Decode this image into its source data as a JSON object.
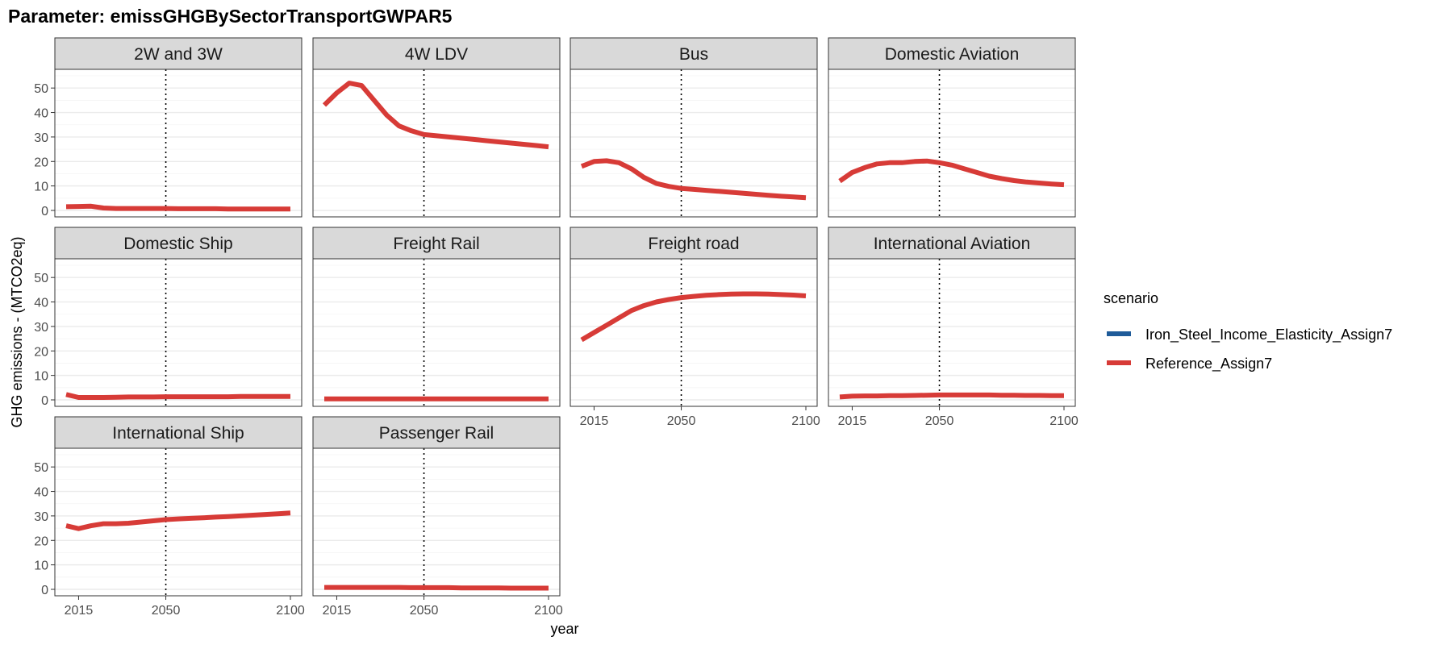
{
  "page_title": "Parameter: emissGHGBySectorTransportGWPAR5",
  "chart_data": {
    "type": "line",
    "title": "Parameter: emissGHGBySectorTransportGWPAR5",
    "xlabel": "year",
    "ylabel": "GHG emissions - (MTCO2eq)",
    "xlim": [
      2010,
      2100
    ],
    "ylim": [
      0,
      55
    ],
    "x_ticks": [
      2015,
      2050,
      2100
    ],
    "y_ticks": [
      0,
      10,
      20,
      30,
      40,
      50
    ],
    "reference_line_x": 2050,
    "grid": true,
    "legend_title": "scenario",
    "legend_position": "right",
    "legend": [
      {
        "name": "Iron_Steel_Income_Elasticity_Assign7",
        "color": "#1f5b99"
      },
      {
        "name": "Reference_Assign7",
        "color": "#d73b37"
      }
    ],
    "x": [
      2010,
      2015,
      2020,
      2025,
      2030,
      2035,
      2040,
      2045,
      2050,
      2055,
      2060,
      2065,
      2070,
      2075,
      2080,
      2085,
      2090,
      2095,
      2100
    ],
    "panels": [
      {
        "name": "2W and 3W",
        "series": [
          {
            "name": "Reference_Assign7",
            "values": [
              1.5,
              1.6,
              1.7,
              1.0,
              0.8,
              0.8,
              0.8,
              0.8,
              0.8,
              0.7,
              0.7,
              0.7,
              0.7,
              0.6,
              0.6,
              0.6,
              0.6,
              0.6,
              0.6
            ]
          }
        ]
      },
      {
        "name": "4W LDV",
        "series": [
          {
            "name": "Reference_Assign7",
            "values": [
              43,
              48,
              52,
              51,
              45,
              39,
              34.5,
              32.5,
              31,
              30.5,
              30,
              29.5,
              29,
              28.5,
              28,
              27.5,
              27,
              26.5,
              26
            ]
          }
        ]
      },
      {
        "name": "Bus",
        "series": [
          {
            "name": "Reference_Assign7",
            "values": [
              18,
              20,
              20.3,
              19.5,
              17,
              13.5,
              11,
              9.8,
              9,
              8.6,
              8.2,
              7.8,
              7.4,
              7,
              6.6,
              6.2,
              5.8,
              5.5,
              5.2
            ]
          }
        ]
      },
      {
        "name": "Domestic Aviation",
        "series": [
          {
            "name": "Reference_Assign7",
            "values": [
              12,
              15.5,
              17.5,
              19,
              19.5,
              19.5,
              20,
              20.2,
              19.5,
              18.5,
              17,
              15.5,
              14,
              13,
              12.2,
              11.6,
              11.2,
              10.8,
              10.5
            ]
          }
        ]
      },
      {
        "name": "Domestic Ship",
        "series": [
          {
            "name": "Reference_Assign7",
            "values": [
              2.2,
              1.0,
              1.0,
              1.0,
              1.1,
              1.2,
              1.2,
              1.2,
              1.3,
              1.3,
              1.3,
              1.3,
              1.3,
              1.3,
              1.4,
              1.4,
              1.4,
              1.4,
              1.4
            ]
          }
        ]
      },
      {
        "name": "Freight Rail",
        "series": [
          {
            "name": "Reference_Assign7",
            "values": [
              0.4,
              0.4,
              0.4,
              0.4,
              0.4,
              0.4,
              0.4,
              0.4,
              0.4,
              0.4,
              0.4,
              0.4,
              0.4,
              0.4,
              0.4,
              0.4,
              0.4,
              0.4,
              0.4
            ]
          }
        ]
      },
      {
        "name": "Freight road",
        "series": [
          {
            "name": "Reference_Assign7",
            "values": [
              24.5,
              27.5,
              30.5,
              33.5,
              36.5,
              38.5,
              40,
              41,
              41.8,
              42.3,
              42.7,
              43,
              43.2,
              43.3,
              43.3,
              43.2,
              43,
              42.8,
              42.5
            ]
          }
        ]
      },
      {
        "name": "International Aviation",
        "series": [
          {
            "name": "Reference_Assign7",
            "values": [
              1.2,
              1.5,
              1.6,
              1.6,
              1.7,
              1.7,
              1.8,
              1.9,
              2.0,
              2.0,
              2.0,
              2.0,
              2.0,
              1.9,
              1.9,
              1.8,
              1.8,
              1.7,
              1.7
            ]
          }
        ]
      },
      {
        "name": "International Ship",
        "series": [
          {
            "name": "Reference_Assign7",
            "values": [
              26,
              24.8,
              26,
              26.8,
              26.8,
              27,
              27.5,
              28,
              28.5,
              28.8,
              29,
              29.2,
              29.5,
              29.7,
              30,
              30.3,
              30.6,
              30.9,
              31.2
            ]
          }
        ]
      },
      {
        "name": "Passenger Rail",
        "series": [
          {
            "name": "Reference_Assign7",
            "values": [
              0.8,
              0.8,
              0.8,
              0.8,
              0.8,
              0.8,
              0.8,
              0.7,
              0.7,
              0.7,
              0.7,
              0.6,
              0.6,
              0.6,
              0.6,
              0.5,
              0.5,
              0.5,
              0.5
            ]
          }
        ]
      }
    ]
  }
}
